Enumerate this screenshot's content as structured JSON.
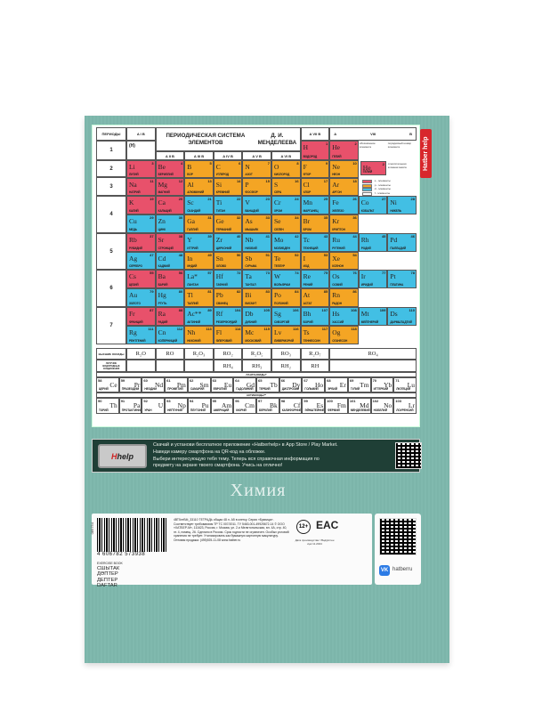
{
  "hatber_tab": "Hatber help",
  "table": {
    "title_line1": "ПЕРИОДИЧЕСКАЯ СИСТЕМА ЭЛЕМЕНТОВ",
    "title_line2": "Д. И. МЕНДЕЛЕЕВА",
    "periods_header": "ПЕРИОДЫ",
    "group_headers": [
      "A  I  B",
      "A  II  B",
      "A  III  B",
      "A  IV  B",
      "A  V  B",
      "A  VI  B",
      "A  VII  B"
    ],
    "group_viii": {
      "a": "A",
      "label": "VIII",
      "b": "B"
    },
    "h_placeholder": "(H)",
    "period_numbers": [
      "1",
      "2",
      "3",
      "4",
      "5",
      "6",
      "7"
    ],
    "legend": {
      "labels": [
        "обозначение элемента",
        "порядковый номер элемента",
        "относительная атомная масса"
      ],
      "example": {
        "n": 2,
        "s": "He",
        "r": "ГЕЛИЙ",
        "b": "s"
      },
      "blocks": [
        {
          "b": "s",
          "t": "s - элементы",
          "color": "#e8516b"
        },
        {
          "b": "p",
          "t": "p - элементы",
          "color": "#f4a524"
        },
        {
          "b": "d",
          "t": "d - элементы",
          "color": "#42bfe4"
        },
        {
          "b": "f",
          "t": "f - элементы",
          "color": "#ffffff"
        }
      ]
    },
    "rows": [
      [
        {
          "n": 1,
          "s": "H",
          "r": "ВОДОРОД",
          "b": "s",
          "c": 6
        },
        {
          "n": 2,
          "s": "He",
          "r": "ГЕЛИЙ",
          "b": "s",
          "c": 7
        }
      ],
      [
        {
          "n": 3,
          "s": "Li",
          "r": "ЛИТИЙ",
          "b": "s"
        },
        {
          "n": 4,
          "s": "Be",
          "r": "БЕРИЛЛИЙ",
          "b": "s"
        },
        {
          "n": 5,
          "s": "B",
          "r": "БОР",
          "b": "p"
        },
        {
          "n": 6,
          "s": "C",
          "r": "УГЛЕРОД",
          "b": "p"
        },
        {
          "n": 7,
          "s": "N",
          "r": "АЗОТ",
          "b": "p"
        },
        {
          "n": 8,
          "s": "O",
          "r": "КИСЛОРОД",
          "b": "p"
        },
        {
          "n": 9,
          "s": "F",
          "r": "ФТОР",
          "b": "p"
        },
        {
          "n": 10,
          "s": "Ne",
          "r": "НЕОН",
          "b": "p"
        }
      ],
      [
        {
          "n": 11,
          "s": "Na",
          "r": "НАТРИЙ",
          "b": "s"
        },
        {
          "n": 12,
          "s": "Mg",
          "r": "МАГНИЙ",
          "b": "s"
        },
        {
          "n": 13,
          "s": "Al",
          "r": "АЛЮМИНИЙ",
          "b": "p"
        },
        {
          "n": 14,
          "s": "Si",
          "r": "КРЕМНИЙ",
          "b": "p"
        },
        {
          "n": 15,
          "s": "P",
          "r": "ФОСФОР",
          "b": "p"
        },
        {
          "n": 16,
          "s": "S",
          "r": "СЕРА",
          "b": "p"
        },
        {
          "n": 17,
          "s": "Cl",
          "r": "ХЛОР",
          "b": "p"
        },
        {
          "n": 18,
          "s": "Ar",
          "r": "АРГОН",
          "b": "p"
        }
      ],
      [
        {
          "n": 19,
          "s": "K",
          "r": "КАЛИЙ",
          "b": "s"
        },
        {
          "n": 20,
          "s": "Ca",
          "r": "КАЛЬЦИЙ",
          "b": "s"
        },
        {
          "n": 21,
          "s": "Sc",
          "r": "СКАНДИЙ",
          "b": "d"
        },
        {
          "n": 22,
          "s": "Ti",
          "r": "ТИТАН",
          "b": "d"
        },
        {
          "n": 23,
          "s": "V",
          "r": "ВАНАДИЙ",
          "b": "d"
        },
        {
          "n": 24,
          "s": "Cr",
          "r": "ХРОМ",
          "b": "d"
        },
        {
          "n": 25,
          "s": "Mn",
          "r": "МАРГАНЕЦ",
          "b": "d"
        },
        {
          "n": 26,
          "s": "Fe",
          "r": "ЖЕЛЕЗО",
          "b": "d"
        },
        {
          "n": 27,
          "s": "Co",
          "r": "КОБАЛЬТ",
          "b": "d"
        },
        {
          "n": 28,
          "s": "Ni",
          "r": "НИКЕЛЬ",
          "b": "d"
        }
      ],
      [
        {
          "n": 29,
          "s": "Cu",
          "r": "МЕДЬ",
          "b": "d"
        },
        {
          "n": 30,
          "s": "Zn",
          "r": "ЦИНК",
          "b": "d"
        },
        {
          "n": 31,
          "s": "Ga",
          "r": "ГАЛЛИЙ",
          "b": "p"
        },
        {
          "n": 32,
          "s": "Ge",
          "r": "ГЕРМАНИЙ",
          "b": "p"
        },
        {
          "n": 33,
          "s": "As",
          "r": "МЫШЬЯК",
          "b": "p"
        },
        {
          "n": 34,
          "s": "Se",
          "r": "СЕЛЕН",
          "b": "p"
        },
        {
          "n": 35,
          "s": "Br",
          "r": "БРОМ",
          "b": "p"
        },
        {
          "n": 36,
          "s": "Kr",
          "r": "КРИПТОН",
          "b": "p"
        }
      ],
      [
        {
          "n": 37,
          "s": "Rb",
          "r": "РУБИДИЙ",
          "b": "s"
        },
        {
          "n": 38,
          "s": "Sr",
          "r": "СТРОНЦИЙ",
          "b": "s"
        },
        {
          "n": 39,
          "s": "Y",
          "r": "ИТТРИЙ",
          "b": "d"
        },
        {
          "n": 40,
          "s": "Zr",
          "r": "ЦИРКОНИЙ",
          "b": "d"
        },
        {
          "n": 41,
          "s": "Nb",
          "r": "НИОБИЙ",
          "b": "d"
        },
        {
          "n": 42,
          "s": "Mo",
          "r": "МОЛИБДЕН",
          "b": "d"
        },
        {
          "n": 43,
          "s": "Tc",
          "r": "ТЕХНЕЦИЙ",
          "b": "d"
        },
        {
          "n": 44,
          "s": "Ru",
          "r": "РУТЕНИЙ",
          "b": "d"
        },
        {
          "n": 45,
          "s": "Rh",
          "r": "РОДИЙ",
          "b": "d"
        },
        {
          "n": 46,
          "s": "Pd",
          "r": "ПАЛЛАДИЙ",
          "b": "d"
        }
      ],
      [
        {
          "n": 47,
          "s": "Ag",
          "r": "СЕРЕБРО",
          "b": "d"
        },
        {
          "n": 48,
          "s": "Cd",
          "r": "КАДМИЙ",
          "b": "d"
        },
        {
          "n": 49,
          "s": "In",
          "r": "ИНДИЙ",
          "b": "p"
        },
        {
          "n": 50,
          "s": "Sn",
          "r": "ОЛОВО",
          "b": "p"
        },
        {
          "n": 51,
          "s": "Sb",
          "r": "СУРЬМА",
          "b": "p"
        },
        {
          "n": 52,
          "s": "Te",
          "r": "ТЕЛЛУР",
          "b": "p"
        },
        {
          "n": 53,
          "s": "I",
          "r": "ИОД",
          "b": "p"
        },
        {
          "n": 54,
          "s": "Xe",
          "r": "КСЕНОН",
          "b": "p"
        }
      ],
      [
        {
          "n": 55,
          "s": "Cs",
          "r": "ЦЕЗИЙ",
          "b": "s"
        },
        {
          "n": 56,
          "s": "Ba",
          "r": "БАРИЙ",
          "b": "s"
        },
        {
          "n": 57,
          "s": "La*",
          "r": "ЛАНТАН",
          "b": "d"
        },
        {
          "n": 72,
          "s": "Hf",
          "r": "ГАФНИЙ",
          "b": "d"
        },
        {
          "n": 73,
          "s": "Ta",
          "r": "ТАНТАЛ",
          "b": "d"
        },
        {
          "n": 74,
          "s": "W",
          "r": "ВОЛЬФРАМ",
          "b": "d"
        },
        {
          "n": 75,
          "s": "Re",
          "r": "РЕНИЙ",
          "b": "d"
        },
        {
          "n": 76,
          "s": "Os",
          "r": "ОСМИЙ",
          "b": "d"
        },
        {
          "n": 77,
          "s": "Ir",
          "r": "ИРИДИЙ",
          "b": "d"
        },
        {
          "n": 78,
          "s": "Pt",
          "r": "ПЛАТИНА",
          "b": "d"
        }
      ],
      [
        {
          "n": 79,
          "s": "Au",
          "r": "ЗОЛОТО",
          "b": "d"
        },
        {
          "n": 80,
          "s": "Hg",
          "r": "РТУТЬ",
          "b": "d"
        },
        {
          "n": 81,
          "s": "Tl",
          "r": "ТАЛЛИЙ",
          "b": "p"
        },
        {
          "n": 82,
          "s": "Pb",
          "r": "СВИНЕЦ",
          "b": "p"
        },
        {
          "n": 83,
          "s": "Bi",
          "r": "ВИСМУТ",
          "b": "p"
        },
        {
          "n": 84,
          "s": "Po",
          "r": "ПОЛОНИЙ",
          "b": "p"
        },
        {
          "n": 85,
          "s": "At",
          "r": "АСТАТ",
          "b": "p"
        },
        {
          "n": 86,
          "s": "Rn",
          "r": "РАДОН",
          "b": "p"
        }
      ],
      [
        {
          "n": 87,
          "s": "Fr",
          "r": "ФРАНЦИЙ",
          "b": "s"
        },
        {
          "n": 88,
          "s": "Ra",
          "r": "РАДИЙ",
          "b": "s"
        },
        {
          "n": 89,
          "s": "Ac**",
          "r": "АКТИНИЙ",
          "b": "d"
        },
        {
          "n": 104,
          "s": "Rf",
          "r": "РЕЗЕРФОРДИЙ",
          "b": "d"
        },
        {
          "n": 105,
          "s": "Db",
          "r": "ДУБНИЙ",
          "b": "d"
        },
        {
          "n": 106,
          "s": "Sg",
          "r": "СИБОРГИЙ",
          "b": "d"
        },
        {
          "n": 107,
          "s": "Bh",
          "r": "БОРИЙ",
          "b": "d"
        },
        {
          "n": 108,
          "s": "Hs",
          "r": "ХАССИЙ",
          "b": "d"
        },
        {
          "n": 109,
          "s": "Mt",
          "r": "МЕЙТНЕРИЙ",
          "b": "d"
        },
        {
          "n": 110,
          "s": "Ds",
          "r": "ДАРМШТАДТИЙ",
          "b": "d"
        }
      ],
      [
        {
          "n": 111,
          "s": "Rg",
          "r": "РЕНТГЕНИЙ",
          "b": "d"
        },
        {
          "n": 112,
          "s": "Cn",
          "r": "КОПЕРНИЦИЙ",
          "b": "d"
        },
        {
          "n": 113,
          "s": "Nh",
          "r": "НИХОНИЙ",
          "b": "p"
        },
        {
          "n": 114,
          "s": "Fl",
          "r": "ФЛЕРОВИЙ",
          "b": "p"
        },
        {
          "n": 115,
          "s": "Mc",
          "r": "МОСКОВИЙ",
          "b": "p"
        },
        {
          "n": 116,
          "s": "Lv",
          "r": "ЛИВЕРМОРИЙ",
          "b": "p"
        },
        {
          "n": 117,
          "s": "Ts",
          "r": "ТЕННЕССИН",
          "b": "p"
        },
        {
          "n": 118,
          "s": "Og",
          "r": "ОГАНЕСОН",
          "b": "p"
        }
      ]
    ],
    "oxides_label": "ВЫСШИЕ ОКСИДЫ",
    "oxides": [
      "R₂O",
      "RO",
      "R₂O₃",
      "RO₂",
      "R₂O₅",
      "RO₃",
      "R₂O₇",
      "RO₄"
    ],
    "hydrides_label": "ЛЕТУЧИЕ ВОДОРОДНЫЕ СОЕДИНЕНИЯ",
    "hydrides": [
      "RH₄",
      "RH₃",
      "RH₂",
      "RH"
    ],
    "lanthanides_label": "ЛАНТАНОИДЫ*",
    "lanthanides": [
      {
        "n": 58,
        "s": "Ce",
        "r": "ЦЕРИЙ"
      },
      {
        "n": 59,
        "s": "Pr",
        "r": "ПРАЗЕОДИМ"
      },
      {
        "n": 60,
        "s": "Nd",
        "r": "НЕОДИМ"
      },
      {
        "n": 61,
        "s": "Pm",
        "r": "ПРОМЕТИЙ"
      },
      {
        "n": 62,
        "s": "Sm",
        "r": "САМАРИЙ"
      },
      {
        "n": 63,
        "s": "Eu",
        "r": "ЕВРОПИЙ"
      },
      {
        "n": 64,
        "s": "Gd",
        "r": "ГАДОЛИНИЙ"
      },
      {
        "n": 65,
        "s": "Tb",
        "r": "ТЕРБИЙ"
      },
      {
        "n": 66,
        "s": "Dy",
        "r": "ДИСПРОЗИЙ"
      },
      {
        "n": 67,
        "s": "Ho",
        "r": "ГОЛЬМИЙ"
      },
      {
        "n": 68,
        "s": "Er",
        "r": "ЭРБИЙ"
      },
      {
        "n": 69,
        "s": "Tm",
        "r": "ТУЛИЙ"
      },
      {
        "n": 70,
        "s": "Yb",
        "r": "ИТТЕРБИЙ"
      },
      {
        "n": 71,
        "s": "Lu",
        "r": "ЛЮТЕЦИЙ"
      }
    ],
    "actinides_label": "АКТИНОИДЫ**",
    "actinides": [
      {
        "n": 90,
        "s": "Th",
        "r": "ТОРИЙ"
      },
      {
        "n": 91,
        "s": "Pa",
        "r": "ПРОТАКТИНИЙ"
      },
      {
        "n": 92,
        "s": "U",
        "r": "УРАН"
      },
      {
        "n": 93,
        "s": "Np",
        "r": "НЕПТУНИЙ"
      },
      {
        "n": 94,
        "s": "Pu",
        "r": "ПЛУТОНИЙ"
      },
      {
        "n": 95,
        "s": "Am",
        "r": "АМЕРИЦИЙ"
      },
      {
        "n": 96,
        "s": "Cm",
        "r": "КЮРИЙ"
      },
      {
        "n": 97,
        "s": "Bk",
        "r": "БЕРКЛИЙ"
      },
      {
        "n": 98,
        "s": "Cf",
        "r": "КАЛИФОРНИЙ"
      },
      {
        "n": 99,
        "s": "Es",
        "r": "ЭЙНШТЕЙНИЙ"
      },
      {
        "n": 100,
        "s": "Fm",
        "r": "ФЕРМИЙ"
      },
      {
        "n": 101,
        "s": "Md",
        "r": "МЕНДЕЛЕВИЙ"
      },
      {
        "n": 102,
        "s": "No",
        "r": "НОБЕЛИЙ"
      },
      {
        "n": 103,
        "s": "Lr",
        "r": "ЛОУРЕНСИЙ"
      }
    ]
  },
  "banner": {
    "logo": {
      "h": "H",
      "rest": "help"
    },
    "lines": [
      "Скачай и установи бесплатное приложение «Hatberhelp» в App Store / Play Market.",
      "Наведи камеру смартфона на QR-код на обложке.",
      "Выбери интересующую тебя тему. Теперь вся справочная информация по",
      "предмету на экране твоего смартфона. Учись на отлично!"
    ]
  },
  "subject": "Химия",
  "label": {
    "side_code": "089754",
    "barcode_number": "4 606782 573938",
    "info": "4ВТ5лтВ4t_33110 ТЕТРАДЬ общая 48 л. А5 в клетку. Серия «Буквица». Соответствует требованиям ТР ТС 007/2011. ТУ 5463-001-49925672-14 © ООО «ХАТБЕР-М», 111623, Россия, г. Москва, ул. 2-я Мелитопольская, вл. 4А, стр. 40, эт. 4, помещ. 26. Сделано в России. Срок годности не ограничен. Особых условий хранения не требует. Утилизировать как бумажную картонную макулатуру. Оптовая продажа: (495)925-11-08 www.hatber.ru",
    "age": "12+",
    "eac": "EAC",
    "production_date": "Дата производства / Өндірілген күні 11.2024",
    "languages": [
      "EXERCISE BOOK",
      "СШЫТАК",
      "ДӘПТЕР",
      "ДЕПТЕР",
      "DAFTAR"
    ]
  },
  "social": {
    "network": "VK",
    "handle": "hatberru"
  },
  "colors": {
    "cover": "#7cb5aa",
    "s": "#e8516b",
    "p": "#f4a524",
    "d": "#42bfe4",
    "banner": "#1f3f36",
    "brand": "#d8262c"
  }
}
